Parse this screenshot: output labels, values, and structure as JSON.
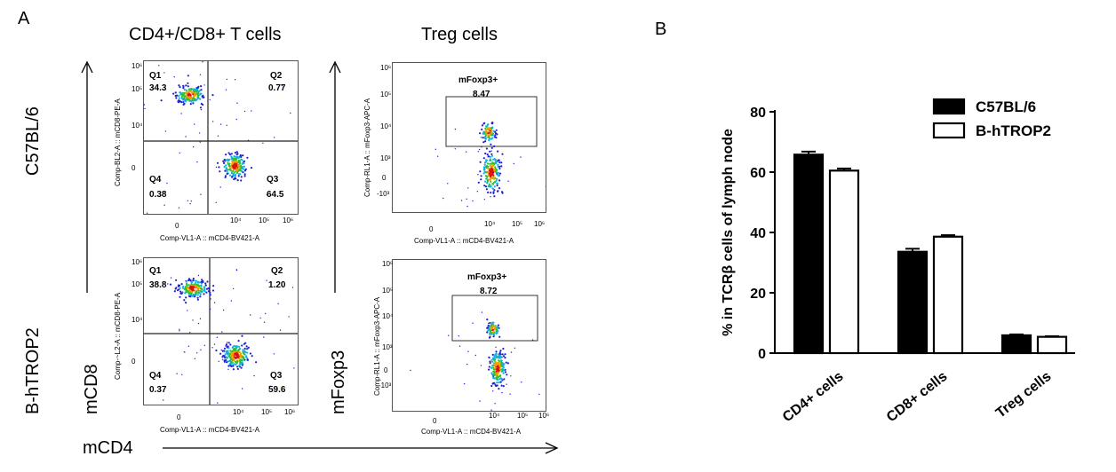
{
  "panel_a": {
    "letter": "A",
    "col1_title": "CD4+/CD8+ T cells",
    "col2_title": "Treg cells",
    "row1_label": "C57BL/6",
    "row2_label": "B-hTROP2",
    "left_axis_word": "mCD8",
    "mid_axis_word": "mFoxp3",
    "bottom_axis_word": "mCD4",
    "cd8_axis_title": "Comp-BL2-A :: mCD8-PE-A",
    "cd8_axis_title_r2": "Comp-~L2-A :: mCD8-PE-A",
    "foxp3_axis_title": "Comp-RL1-A :: mFoxp3-APC-A",
    "cd4_axis_title": "Comp-VL1-A :: mCD4-BV421-A",
    "y_ticks": [
      "10⁶",
      "10⁵",
      "10⁴",
      "10³",
      "0"
    ],
    "y_ticks_treg": [
      "10⁶",
      "10⁵",
      "10⁴",
      "10³",
      "0",
      "-10³"
    ],
    "x_ticks": [
      "0",
      "10⁴",
      "10⁵",
      "10⁶"
    ],
    "plots": [
      {
        "q1": "Q1",
        "q1v": "34.3",
        "q2": "Q2",
        "q2v": "0.77",
        "q3": "Q3",
        "q3v": "64.5",
        "q4": "Q4",
        "q4v": "0.38"
      },
      {
        "q1": "Q1",
        "q1v": "38.8",
        "q2": "Q2",
        "q2v": "1.20",
        "q3": "Q3",
        "q3v": "59.6",
        "q4": "Q4",
        "q4v": "0.37"
      }
    ],
    "treg": [
      {
        "gate": "mFoxp3+",
        "value": "8.47"
      },
      {
        "gate": "mFoxp3+",
        "value": "8.72"
      }
    ]
  },
  "panel_b": {
    "letter": "B"
  },
  "chart_data": {
    "type": "bar",
    "title": "",
    "xlabel": "",
    "ylabel": "% in TCRβ cells of lymph node",
    "ylim": [
      0,
      80
    ],
    "yticks": [
      0,
      20,
      40,
      60,
      80
    ],
    "categories": [
      "CD4+ cells",
      "CD8+ cells",
      "Treg cells"
    ],
    "series": [
      {
        "name": "C57BL/6",
        "values": [
          65.8,
          33.6,
          5.9
        ],
        "errors": [
          1.0,
          1.0,
          0.3
        ],
        "color": "#000000",
        "fill": "#000000"
      },
      {
        "name": "B-hTROP2",
        "values": [
          60.5,
          38.6,
          5.4
        ],
        "errors": [
          0.7,
          0.5,
          0.2
        ],
        "color": "#000000",
        "fill": "#ffffff"
      }
    ],
    "legend_position": "top-right"
  }
}
